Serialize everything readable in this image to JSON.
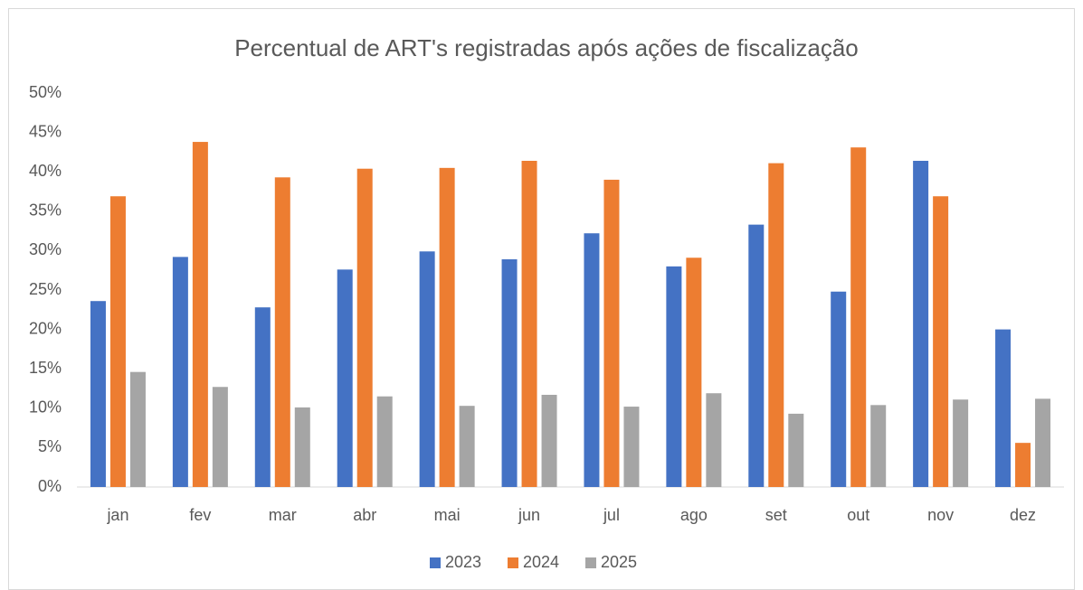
{
  "chart_data": {
    "type": "bar",
    "title": "Percentual de ART's registradas após ações de fiscalização",
    "categories": [
      "jan",
      "fev",
      "mar",
      "abr",
      "mai",
      "jun",
      "jul",
      "ago",
      "set",
      "out",
      "nov",
      "dez"
    ],
    "series": [
      {
        "name": "2023",
        "color": "#4472c4",
        "values": [
          23.6,
          29.2,
          22.8,
          27.6,
          29.9,
          28.9,
          32.2,
          28.0,
          33.3,
          24.8,
          41.4,
          20.0
        ]
      },
      {
        "name": "2024",
        "color": "#ed7d31",
        "values": [
          36.9,
          43.8,
          39.3,
          40.4,
          40.5,
          41.4,
          39.0,
          29.1,
          41.1,
          43.1,
          36.9,
          5.6
        ]
      },
      {
        "name": "2025",
        "color": "#a5a5a5",
        "values": [
          14.6,
          12.7,
          10.1,
          11.5,
          10.3,
          11.7,
          10.2,
          11.9,
          9.3,
          10.4,
          11.1,
          11.2
        ]
      }
    ],
    "ylim": [
      0,
      50
    ],
    "yticks": [
      {
        "value": 0,
        "label": "0%"
      },
      {
        "value": 5,
        "label": "5%"
      },
      {
        "value": 10,
        "label": "10%"
      },
      {
        "value": 15,
        "label": "15%"
      },
      {
        "value": 20,
        "label": "20%"
      },
      {
        "value": 25,
        "label": "25%"
      },
      {
        "value": 30,
        "label": "30%"
      },
      {
        "value": 35,
        "label": "35%"
      },
      {
        "value": 40,
        "label": "40%"
      },
      {
        "value": 45,
        "label": "45%"
      },
      {
        "value": 50,
        "label": "50%"
      }
    ],
    "grid": false,
    "legend": "bottom"
  }
}
